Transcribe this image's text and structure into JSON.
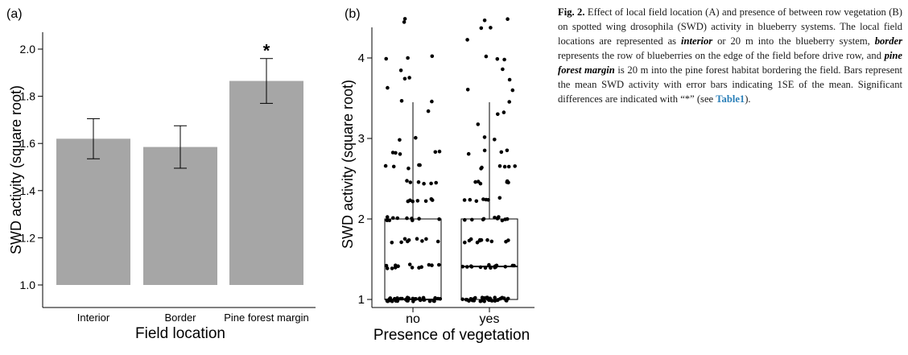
{
  "panel_a": {
    "label": "(a)",
    "star": "*"
  },
  "panel_b": {
    "label": "(b)"
  },
  "caption": {
    "fig_label": "Fig. 2.",
    "t1": " Effect of local field location (A) and presence of between row vegetation (B) on spotted wing drosophila (SWD) activity in blueberry systems. The local field locations are represented as ",
    "interior": "interior",
    "t2": " or 20 m into the blueberry system, ",
    "border": "border",
    "t3": " represents the row of blueberries on the edge of the field before drive row, and ",
    "pine": "pine forest margin",
    "t4": " is 20 m into the pine forest habitat bordering the field. Bars represent the mean SWD activity with error bars indicating 1SE of the mean. Significant differences are indicated with “*” (see ",
    "table_ref": "Table1",
    "t5": ")."
  },
  "chart_data": [
    {
      "type": "bar",
      "categories": [
        "Interior",
        "Border",
        "Pine forest margin"
      ],
      "values": [
        1.62,
        1.585,
        1.865
      ],
      "error": [
        0.085,
        0.09,
        0.095
      ],
      "xlabel": "Field location",
      "ylabel": "SWD activity (square root)",
      "ylim": [
        1.0,
        2.1
      ],
      "yticks": [
        "1.0",
        "1.2",
        "1.4",
        "1.6",
        "1.8",
        "2.0"
      ],
      "bar_color": "#a6a6a6",
      "significance": [
        "",
        "",
        "*"
      ]
    },
    {
      "type": "box",
      "categories": [
        "no",
        "yes"
      ],
      "xlabel": "Presence of vegetation",
      "ylabel": "SWD activity (square root)",
      "ylim": [
        0.95,
        4.5
      ],
      "yticks": [
        "1",
        "2",
        "3",
        "4"
      ],
      "boxes": [
        {
          "name": "no",
          "min": 1.0,
          "q1": 1.0,
          "median": 1.0,
          "q3": 2.0,
          "max": 3.45
        },
        {
          "name": "yes",
          "min": 1.0,
          "q1": 1.0,
          "median": 1.41,
          "q3": 2.0,
          "max": 3.45
        }
      ],
      "points": {
        "no": [
          1.0,
          1.0,
          1.0,
          1.0,
          1.0,
          1.0,
          1.0,
          1.0,
          1.0,
          1.0,
          1.0,
          1.0,
          1.0,
          1.0,
          1.0,
          1.0,
          1.0,
          1.0,
          1.0,
          1.0,
          1.0,
          1.0,
          1.0,
          1.0,
          1.0,
          1.0,
          1.0,
          1.0,
          1.0,
          1.0,
          1.0,
          1.0,
          1.0,
          1.0,
          1.0,
          1.0,
          1.0,
          1.0,
          1.0,
          1.0,
          1.41,
          1.41,
          1.41,
          1.41,
          1.41,
          1.41,
          1.41,
          1.41,
          1.41,
          1.41,
          1.41,
          1.41,
          1.41,
          1.73,
          1.73,
          1.73,
          1.73,
          1.73,
          1.73,
          1.73,
          1.73,
          1.73,
          2.0,
          2.0,
          2.0,
          2.0,
          2.0,
          2.0,
          2.0,
          2.0,
          2.0,
          2.0,
          2.24,
          2.24,
          2.24,
          2.24,
          2.24,
          2.24,
          2.24,
          2.45,
          2.45,
          2.45,
          2.45,
          2.45,
          2.45,
          2.65,
          2.65,
          2.65,
          2.65,
          2.65,
          2.83,
          2.83,
          2.83,
          2.83,
          2.83,
          3.0,
          3.0,
          3.32,
          3.46,
          3.46,
          3.61,
          3.74,
          3.74,
          3.87,
          4.0,
          4.0,
          4.0,
          4.47,
          4.47
        ],
        "yes": [
          1.0,
          1.0,
          1.0,
          1.0,
          1.0,
          1.0,
          1.0,
          1.0,
          1.0,
          1.0,
          1.0,
          1.0,
          1.0,
          1.0,
          1.0,
          1.0,
          1.0,
          1.0,
          1.0,
          1.0,
          1.0,
          1.0,
          1.0,
          1.0,
          1.0,
          1.0,
          1.0,
          1.0,
          1.0,
          1.0,
          1.0,
          1.0,
          1.0,
          1.0,
          1.0,
          1.41,
          1.41,
          1.41,
          1.41,
          1.41,
          1.41,
          1.41,
          1.41,
          1.41,
          1.41,
          1.41,
          1.41,
          1.41,
          1.41,
          1.41,
          1.73,
          1.73,
          1.73,
          1.73,
          1.73,
          1.73,
          1.73,
          1.73,
          1.73,
          1.73,
          1.73,
          2.0,
          2.0,
          2.0,
          2.0,
          2.0,
          2.0,
          2.0,
          2.0,
          2.0,
          2.0,
          2.24,
          2.24,
          2.24,
          2.24,
          2.24,
          2.24,
          2.24,
          2.45,
          2.45,
          2.45,
          2.45,
          2.45,
          2.45,
          2.65,
          2.65,
          2.65,
          2.65,
          2.65,
          2.65,
          2.83,
          2.83,
          2.83,
          2.83,
          3.0,
          3.0,
          3.16,
          3.32,
          3.32,
          3.46,
          3.61,
          3.61,
          3.74,
          3.87,
          4.0,
          4.0,
          4.0,
          4.24,
          4.36,
          4.36,
          4.47,
          4.47
        ]
      }
    }
  ]
}
